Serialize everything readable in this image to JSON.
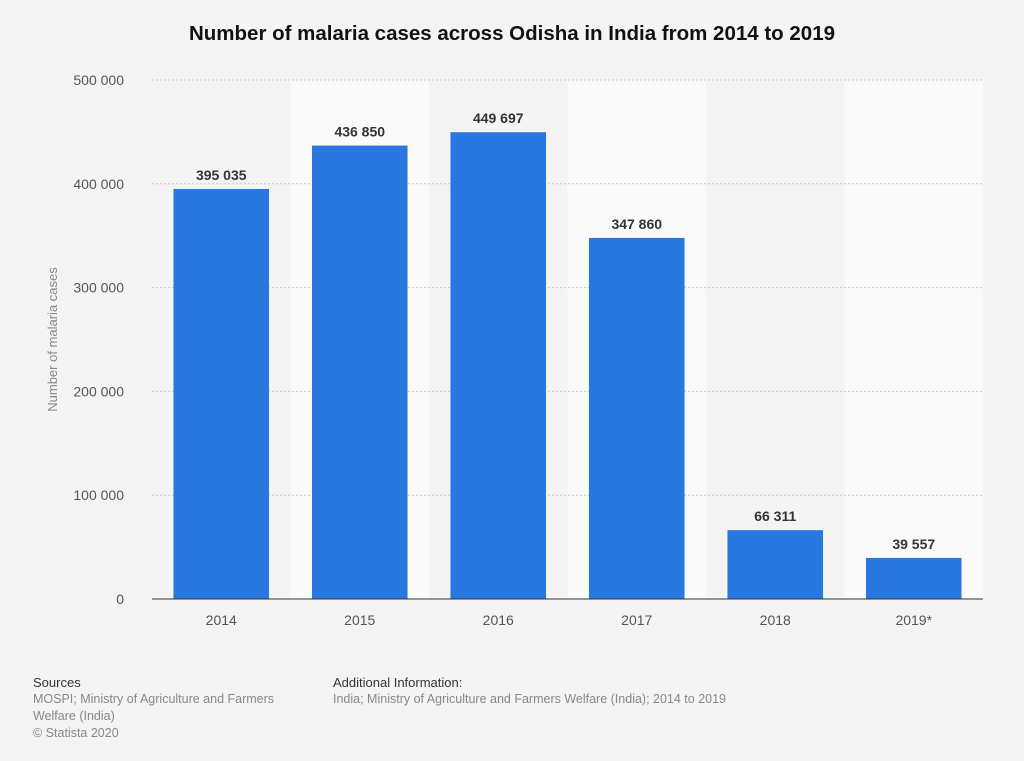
{
  "chart_data": {
    "type": "bar",
    "title": "Number of malaria cases across Odisha in India from 2014 to 2019",
    "xlabel": "",
    "ylabel": "Number of malaria cases",
    "categories": [
      "2014",
      "2015",
      "2016",
      "2017",
      "2018",
      "2019*"
    ],
    "values": [
      395035,
      436850,
      449697,
      347860,
      66311,
      39557
    ],
    "value_labels": [
      "395 035",
      "436 850",
      "449 697",
      "347 860",
      "66 311",
      "39 557"
    ],
    "ylim": [
      0,
      500000
    ],
    "yticks": [
      0,
      100000,
      200000,
      300000,
      400000,
      500000
    ],
    "ytick_labels": [
      "0",
      "100 000",
      "200 000",
      "300 000",
      "400 000",
      "500 000"
    ],
    "grid": true,
    "legend": "none",
    "bar_color": "#2878e0"
  },
  "footer": {
    "sources_heading": "Sources",
    "sources_line1": "MOSPI; Ministry of Agriculture and Farmers",
    "sources_line2": "Welfare (India)",
    "copyright": "© Statista 2020",
    "additional_heading": "Additional Information:",
    "additional_text": "India; Ministry of Agriculture and Farmers Welfare (India); 2014 to 2019"
  }
}
